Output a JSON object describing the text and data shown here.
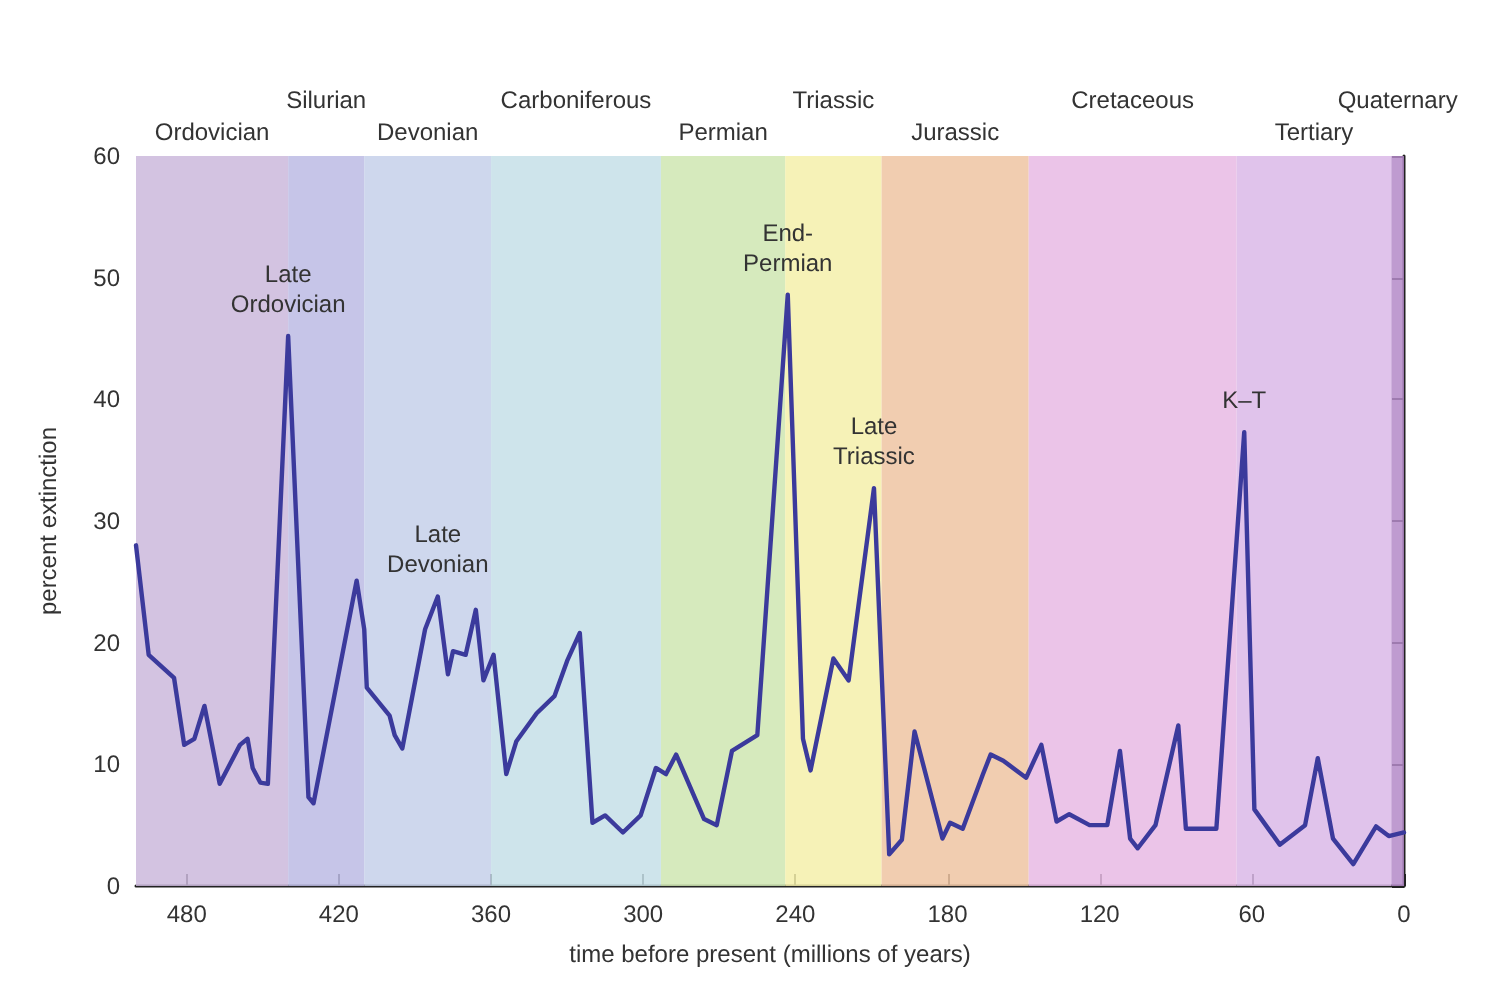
{
  "chart_data": {
    "type": "line",
    "xlabel": "time before present (millions of years)",
    "ylabel": "percent extinction",
    "x": [
      500,
      495,
      485,
      481,
      477,
      473,
      467,
      459,
      456,
      454,
      451,
      448,
      440,
      432,
      430,
      413,
      410,
      409,
      400,
      398,
      395,
      386,
      381,
      377,
      375,
      370,
      366,
      363,
      359,
      354,
      350,
      342,
      335,
      330,
      325,
      320,
      315,
      308,
      301,
      295,
      291,
      287,
      276,
      271,
      265,
      255,
      243,
      237,
      234,
      225,
      219,
      209,
      203,
      198,
      193,
      182,
      179,
      174,
      166,
      163,
      158,
      149,
      143,
      137,
      132,
      124,
      117,
      112,
      108,
      105,
      98,
      89,
      86,
      74,
      63,
      59,
      49,
      39,
      34,
      28,
      20,
      11,
      6,
      0
    ],
    "series": [
      {
        "color": "#3b3a9c",
        "values": [
          28.0,
          19.0,
          17.1,
          11.6,
          12.1,
          14.8,
          8.4,
          11.6,
          12.1,
          9.7,
          8.5,
          8.4,
          45.2,
          7.3,
          6.8,
          25.1,
          21.1,
          16.3,
          14.0,
          12.4,
          11.3,
          21.1,
          23.8,
          17.4,
          19.3,
          19.0,
          22.7,
          16.9,
          19.0,
          9.2,
          11.9,
          14.2,
          15.6,
          18.5,
          20.8,
          5.2,
          5.8,
          4.4,
          5.8,
          9.7,
          9.2,
          10.8,
          5.5,
          5.0,
          11.1,
          12.4,
          48.6,
          12.1,
          9.5,
          18.7,
          16.9,
          32.7,
          2.6,
          3.8,
          12.7,
          3.9,
          5.2,
          4.7,
          9.2,
          10.8,
          10.3,
          8.9,
          11.6,
          5.3,
          5.9,
          5.0,
          5.0,
          11.1,
          3.9,
          3.1,
          5.0,
          13.2,
          4.7,
          4.7,
          37.3,
          6.3,
          3.4,
          5.0,
          10.5,
          3.9,
          1.8,
          4.9,
          4.1,
          4.4
        ]
      }
    ],
    "xlim": [
      500,
      0
    ],
    "xticks": [
      480,
      420,
      360,
      300,
      240,
      180,
      120,
      60,
      0
    ],
    "ylim": [
      0,
      60
    ],
    "yticks": [
      0,
      10,
      20,
      30,
      40,
      50,
      60
    ],
    "grid": false,
    "marker": "none",
    "line_style": "solid",
    "bands": [
      {
        "axis": "x",
        "from": 500,
        "to": 440,
        "label": "Ordovician",
        "color": "#cbb8dc"
      },
      {
        "axis": "x",
        "from": 440,
        "to": 410,
        "label": "Silurian",
        "color": "#bcbbe4"
      },
      {
        "axis": "x",
        "from": 410,
        "to": 360,
        "label": "Devonian",
        "color": "#c6d0ea"
      },
      {
        "axis": "x",
        "from": 360,
        "to": 293,
        "label": "Carboniferous",
        "color": "#c6dfe8"
      },
      {
        "axis": "x",
        "from": 293,
        "to": 244,
        "label": "Permian",
        "color": "#cfe6b2"
      },
      {
        "axis": "x",
        "from": 244,
        "to": 206,
        "label": "Triassic",
        "color": "#f4f0aa"
      },
      {
        "axis": "x",
        "from": 206,
        "to": 148,
        "label": "Jurassic",
        "color": "#efc4a2"
      },
      {
        "axis": "x",
        "from": 148,
        "to": 66,
        "label": "Cretaceous",
        "color": "#e8bae4"
      },
      {
        "axis": "x",
        "from": 66,
        "to": 5,
        "label": "Tertiary",
        "color": "#dab9e8"
      },
      {
        "axis": "x",
        "from": 5,
        "to": 0,
        "label": "Quaternary",
        "color": "#b48ac8"
      }
    ],
    "annotations": [
      {
        "text": "Late\nOrdovician",
        "x": 440,
        "y": 45.2
      },
      {
        "text": "Late\nDevonian",
        "x": 381,
        "y": 23.8
      },
      {
        "text": "End-\nPermian",
        "x": 243,
        "y": 48.6
      },
      {
        "text": "Late\nTriassic",
        "x": 209,
        "y": 32.7
      },
      {
        "text": "K–T",
        "x": 63,
        "y": 37.3
      }
    ]
  }
}
